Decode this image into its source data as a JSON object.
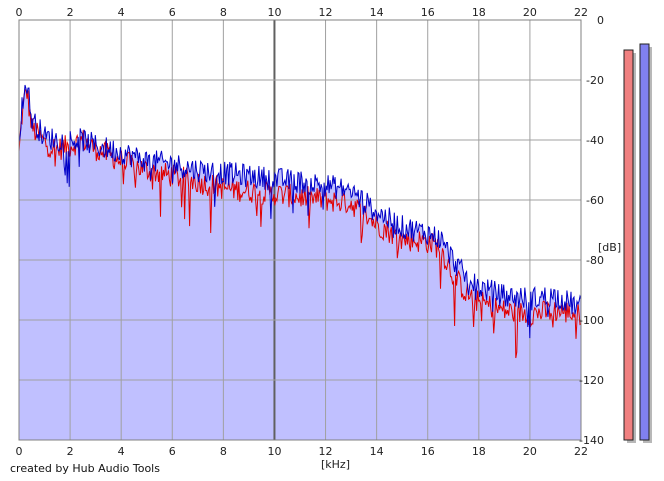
{
  "credit": "created by Hub Audio Tools",
  "chart_data": {
    "type": "line",
    "title": "",
    "xlabel": "[kHz]",
    "ylabel": "[dB]",
    "xlim": [
      0,
      22
    ],
    "ylim": [
      -140,
      0
    ],
    "x_ticks": [
      "0",
      "2",
      "4",
      "6",
      "8",
      "10",
      "12",
      "14",
      "16",
      "18",
      "20",
      "22"
    ],
    "y_ticks": [
      "0",
      "-20",
      "-40",
      "-60",
      "-80",
      "-100",
      "-120",
      "-140"
    ],
    "grid": true,
    "fill_color": "#c0c0ff",
    "series": [
      {
        "color": "#e00000",
        "x": [
          0.0,
          0.1,
          0.2,
          0.3,
          0.5,
          1.0,
          1.5,
          2.0,
          2.5,
          3.0,
          4.0,
          5.0,
          6.0,
          7.0,
          8.0,
          9.0,
          10.0,
          11.0,
          12.0,
          13.0,
          14.0,
          15.0,
          16.0,
          16.5,
          17.0,
          17.5,
          18.0,
          19.0,
          20.0,
          21.0,
          22.0
        ],
        "values": [
          -45,
          -33,
          -27,
          -23,
          -36,
          -41,
          -43,
          -42,
          -40,
          -43,
          -47,
          -50,
          -52,
          -54,
          -56,
          -57,
          -58,
          -59,
          -60,
          -61,
          -68,
          -73,
          -74,
          -76,
          -85,
          -91,
          -94,
          -97,
          -98,
          -97,
          -98
        ]
      },
      {
        "color": "#0000c8",
        "x": [
          0.0,
          0.1,
          0.2,
          0.3,
          0.5,
          1.0,
          1.5,
          2.0,
          2.5,
          3.0,
          4.0,
          5.0,
          6.0,
          7.0,
          8.0,
          9.0,
          10.0,
          11.0,
          12.0,
          13.0,
          14.0,
          15.0,
          16.0,
          16.5,
          17.0,
          17.5,
          18.0,
          19.0,
          20.0,
          21.0,
          22.0
        ],
        "values": [
          -40,
          -30,
          -25,
          -20,
          -33,
          -39,
          -40,
          -40,
          -40,
          -42,
          -44,
          -47,
          -48,
          -50,
          -51,
          -52,
          -53,
          -54,
          -55,
          -57,
          -64,
          -69,
          -71,
          -73,
          -80,
          -86,
          -89,
          -92,
          -93,
          -92,
          -96
        ]
      }
    ],
    "level_meters": [
      {
        "color": "#f08080",
        "level_db": -10
      },
      {
        "color": "#8080f0",
        "level_db": -8
      }
    ]
  }
}
